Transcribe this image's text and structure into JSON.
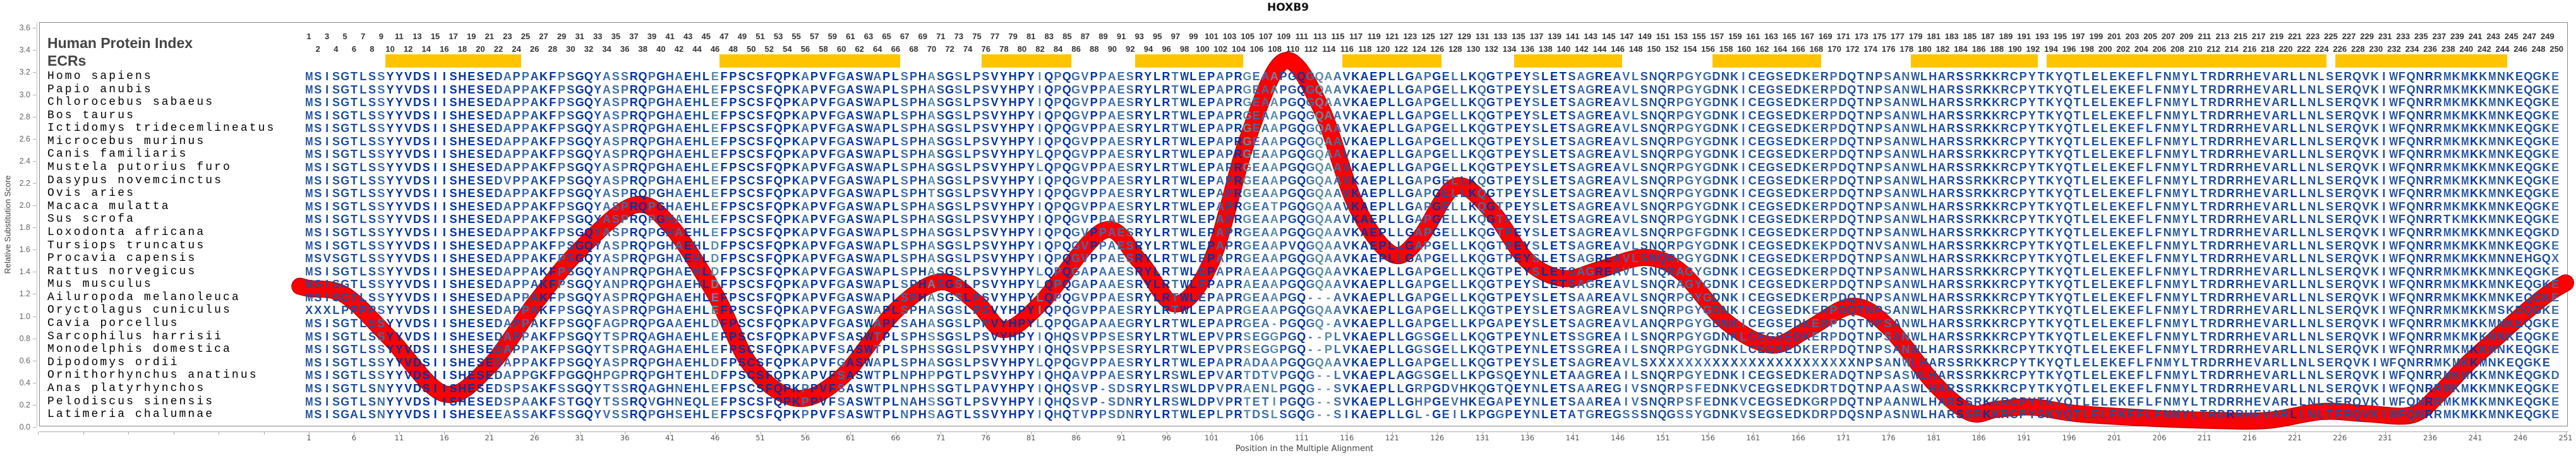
{
  "chart_data": {
    "type": "line",
    "title": "HOXB9",
    "xlabel": "Position in the Multiple Alignment",
    "ylabel": "Relative Substitution Score",
    "ylim": [
      0,
      3.6
    ],
    "xlim": [
      1,
      251
    ],
    "y_ticks": [
      "0.0",
      "0.2",
      "0.4",
      "0.6",
      "0.8",
      "1.0",
      "1.2",
      "1.4",
      "1.6",
      "1.8",
      "2.0",
      "2.2",
      "2.4",
      "2.6",
      "2.8",
      "3.0",
      "3.2",
      "3.4",
      "3.6"
    ],
    "x_ticks": [
      1,
      6,
      11,
      16,
      21,
      26,
      31,
      36,
      41,
      46,
      51,
      56,
      61,
      66,
      71,
      76,
      81,
      86,
      91,
      96,
      101,
      106,
      111,
      116,
      121,
      126,
      131,
      136,
      141,
      146,
      151,
      156,
      161,
      166,
      171,
      176,
      181,
      186,
      191,
      196,
      201,
      206,
      211,
      216,
      221,
      226,
      231,
      236,
      241,
      246,
      251
    ],
    "series": [
      {
        "name": "Relative Substitution Score",
        "color": "#ff0000",
        "points": [
          [
            0,
            1.27
          ],
          [
            1,
            1.25
          ],
          [
            5,
            1.19
          ],
          [
            10,
            0.8
          ],
          [
            16,
            0.3
          ],
          [
            21,
            0.55
          ],
          [
            26,
            1.11
          ],
          [
            31,
            1.6
          ],
          [
            37,
            2.0
          ],
          [
            41,
            1.82
          ],
          [
            46,
            1.2
          ],
          [
            50,
            0.55
          ],
          [
            55,
            0.26
          ],
          [
            60,
            0.45
          ],
          [
            66,
            1.05
          ],
          [
            71,
            1.31
          ],
          [
            75,
            1.12
          ],
          [
            78,
            0.88
          ],
          [
            82,
            1.11
          ],
          [
            89,
            1.77
          ],
          [
            93,
            1.5
          ],
          [
            97,
            1.11
          ],
          [
            101,
            1.5
          ],
          [
            105,
            2.6
          ],
          [
            109,
            3.3
          ],
          [
            113,
            2.9
          ],
          [
            117,
            2.0
          ],
          [
            121,
            1.56
          ],
          [
            124,
            1.7
          ],
          [
            128,
            2.17
          ],
          [
            132,
            1.95
          ],
          [
            136,
            1.5
          ],
          [
            140,
            1.34
          ],
          [
            144,
            1.42
          ],
          [
            149,
            1.53
          ],
          [
            153,
            1.4
          ],
          [
            158,
            0.95
          ],
          [
            163,
            0.74
          ],
          [
            167,
            0.88
          ],
          [
            172,
            1.09
          ],
          [
            176,
            0.9
          ],
          [
            181,
            0.4
          ],
          [
            185,
            0.13
          ],
          [
            188,
            0.16
          ],
          [
            192,
            0.18
          ],
          [
            197,
            0.12
          ],
          [
            205,
            0.08
          ],
          [
            212,
            0.06
          ],
          [
            218,
            0.06
          ],
          [
            224,
            0.14
          ],
          [
            229,
            0.12
          ],
          [
            234,
            0.11
          ],
          [
            237,
            0.3
          ],
          [
            240,
            0.56
          ],
          [
            243,
            0.78
          ],
          [
            246,
            1.0
          ],
          [
            249,
            1.2
          ],
          [
            251,
            1.3
          ]
        ]
      }
    ]
  },
  "header": {
    "protein_index_label": "Human Protein Index",
    "ecr_label": "ECRs",
    "position_range": [
      1,
      250
    ],
    "ecr_color": "#ffc400",
    "ecrs": [
      [
        10,
        24
      ],
      [
        47,
        66
      ],
      [
        76,
        85
      ],
      [
        93,
        104
      ],
      [
        116,
        126
      ],
      [
        135,
        146
      ],
      [
        157,
        168
      ],
      [
        179,
        192
      ],
      [
        194,
        224
      ],
      [
        226,
        244
      ]
    ]
  },
  "rows": [
    {
      "species": "Homo sapiens",
      "seq": "MSISGTLSSYYVDSIISHESEDAPPAKFPSGQYASSRQPGHAEHLEFPSCSFQPKAPVFGASWAPLSPHASGSLPSVYHPYIQPQGVPPAESRYLRTWLEPAPRGEAAPGQGQAAVKAEPLLGAPGELLKQGTPEYSLETSAGREAVLSNQRPGYGDNKICEGSEDKERPDQTNPSANWLHARSSRKKRCPYTKYQTLELEKEFLFNMYLTRDRRHEVARLLNLSERQVKIWFQNRRMKMKKMNKEQGKE"
    },
    {
      "species": "Papio anubis",
      "seq": "MSISGTLSSYYVDSIISHESEDAPPAKFPSGQYASPRQPGHAEHLEFPSCSFQPKAPVFGASWAPLSPHASGSLPSVYHPYIQPQGVPPAESRYLRTWLEPAPRGEAAPGQGQAAVKAEPLLGAPGELLKQGTPEYSLETSAGREAVLSNQRPGYGDNKICEGSEDKERPDQTNPSANWLHARSSRKKRCPYTKYQTLELEKEFLFNMYLTRDRRHEVARLLNLSERQVKIWFQNRRMKMKKMNKEQGKE"
    },
    {
      "species": "Chlorocebus sabaeus",
      "seq": "MSISGTLSSYYVDSIISHESEDAPPAKFPSGQYASPRQPGHAEHLEFPSCSFQPKAPVFGASWAPLSPHASGSLPSVYHPYIQPQGVPPAESRYLRTWLEPAPRGEAAPGQGQAAVKAEPLLGAPGELLKQGTPEYSLETSAGREAVLSNQRPGYGDNKICEGSEDKERPDQTNPSANWLHARSSRKKRCPYTKYQTLELEKEFLFNMYLTRDRRHEVARLLNLSERQVKIWFQNRRMKMKKMNKEQGKE"
    },
    {
      "species": "Bos taurus",
      "seq": "MSISGTLSSYYVDSIISHESEDAPPAKFPSGQYASPRQPGHAEHLEFPSCSFQPKAPVFGASWAPLSPHASGSLPSVYHPYIQPQGVPPAESRYLRTWLEPAPRGEAAPGQGQAAVKAEPLLGAPGELLKQGTPEYSLETSAGREAVLSNQRPGYGDNKICEGSEDKERPDQTNPSANWLHARSSRKKRCPYTKYQTLELEKEFLFNMYLTRDRRHEVARLLNLSERQVKIWFQNRRMKMKKMNKEQGKE"
    },
    {
      "species": "Ictidomys tridecemlineatus",
      "seq": "MSISGTLSSYYVDSIISHESEDAPPAKFPSGQYASPRQPGHAEHLEFPSCSFQPKAPVFGASWAPLSPHASGSLPSVYHPYIQPQGVPPAESRYLRTWLEPAPRGEAAPGQGQAAVKAEPLLGAPGELLKQGTPEYSLETSAGREAVLSNQRPGYGDNKICEGSEDKERPDQTNPSANWLHARSSRKKRCPYTKYQTLELEKEFLFNMYLTRDRRHEVARLLNLSERQVKIWFQNRRMKMKKMNKEQGKE"
    },
    {
      "species": "Microcebus murinus",
      "seq": "MSISGTLSSYYVDSIISHESEDAPPAKFPSGQYASPRQPGHAEHLEFPSCSFQPKAPVFGASWAPLSPHASGSLPSVYHPYIQPQGVPPAESRYLRTWLEPAPRGEAAPGQGQAAVKAEPLLGAPGELLKQGTPEYSLETSAGREAVLSNQRPGYGDNKICEGSEDKERPDQTNPSANWLHARSSRKKRCPYTKYQTLELEKEFLFNMYLTRDRRHEVARLLNLSERQVKIWFQNRRMKMKKMNKEQGKE"
    },
    {
      "species": "Canis familiaris",
      "seq": "MSISGTLSSYYVDSIISHESEDAPPAKFPSGQYASPRQPGHAEHLEFPSCSFQPKAPVFGASWAPLSPHASGSLPSVYHPYLQPQGVPPAESRYLRTWLEPAPRGEAAPGQGQAAVKAEPLLGAPGELLKQGTPEYSLETSAGREAVLSNQRPGYGDNKICEGSEDKERPDQTNPSANWLHARSSRKKRCPYTKYQTLELEKEFLFNMYLTRDRRHEVARLLNLSERQVKIWFQNRRMKMKKMNKEQGKE"
    },
    {
      "species": "Mustela putorius furo",
      "seq": "MSISGTLSSYYVDSIISHESEDAPPAKFPSGQYASPRQPGHAEHLEFPSCSFQPKAPVFGASWAPLSPHASGSLPSVYHPYLQPQGVPPAESRYLRTWLEPAPRGEAAPGQGQAAVKAEPLLGAPGELLKQGTPEYSLETSAGREAVLSNQRPGYGDNKICEGSEDKERPDQTNPSANWLHARSSRKKRCPYTKYQTLELEKEFLFNMYLTRDRRHEVARLLNLSERQVKIWFQNRRMKMKKMNKEQGKE"
    },
    {
      "species": "Dasypus novemcinctus",
      "seq": "MSISGTLSSYYVDSIISHESEDVPPAKFPSGQYASPRQPGHAEHLEFPSCSFQPKAPVFGASWAPLSPHASGSLPSVYHPYIQPQGVPPAESRYLRTWLEPAPRGEAAPGQGQAAVKAEPLLGAPGELLKQGTPEYSLETSAGREAVLSNQRPGYGDNKICEGSEDKERPDQTNPSANWLHARSSRKKRCPYTKYQTLELEKEFLFNMYLTRDRRHEVARLLNLSERQVKIWFQNRRMKMKKMNKEQGKE"
    },
    {
      "species": "Ovis aries",
      "seq": "MSISGTLSSYYVDSIISHESEDAPPAKFPSGQYASPRQPGHAEHLEFPSCSFQPKAPVFGASWAPLSPHTSGSLPSVYHPYIQPQGVPPAESRYLRTWLEPAPRGEAAPGQGQAAVKAEPLLGAPGELLKQGTPEYSLETSAGREAVLSNQRPGYGDNKICEGSEDKERPDQTNPSANWLHARSSRKKRCPYTKYQTLELEKEFLFNMYLTRDRRHEVARLLNLSERQVKIWFQNRRMKMKKMNKEQGKE"
    },
    {
      "species": "Macaca mulatta",
      "seq": "MSISGTLSSYYVDSIISHESEDAPPAKFPSGQYASPRQPGHAEHLEFPSCSFQPKAPVFGASWAPLSPHASGSLPSVYHPYIQPQGVPPAESRYLRTWLEPAPRGEATPGQGQAAVKAEPLLGAPGELLKQGTPEYSLETSAGREAVLSNQRPGYGDNKICEGSEDKERPDQTNPSANWLHARSSRKKRCPYTKYQTLELEKEFLFNMYLTRDRRHEVARLLNLSERQVKIWFQNRRMKMKKMNKEQGKE"
    },
    {
      "species": "Sus scrofa",
      "seq": "MSISGTLSSYYVDSIISHESEDAPPAKFPSGQYASPRQPGHAEHLEFPSCSFQPKAPVFGASWAPLSPHASGSLPSVYHPYIQPQGVPPAESRYLRTWLEPAPRGEAAPGQGQAAVKAEPLLGAPGELLKQGTPEYSLETSAGREAVLSNQRPGYGDNKICEGSEDKERPDQTNPSANWLHARSSRKKRCPYTKYQTLELEKEFLFNMYLTRDRRHEVARLLNLSERQVKIWFQNRRTKMKKMNKEQGKE"
    },
    {
      "species": "Loxodonta africana",
      "seq": "MSISGTLSSYYVDSIISHESEDAPPAKFPSGQYASPRQPGHAEHLEFPSCSFQPKAPVFGASWAPLSPHASGSLPSVYHPYIQPQGVPPAESRYLRTWLEPAPRGEAAPGQGQAAVKAEPLLGAPGELLKQGTPEYSLETSAGREAVLSNQRPGFGDNKICEGSEDKERPDQTNPSANWLHARSSRKKRCPYTKYQTLELEKEFLFNMYLTRDRRHEVARLLNLSERQVKIWFQNRRMKMKKMNKEQGKD"
    },
    {
      "species": "Tursiops truncatus",
      "seq": "MSISGTLSSYYVDSIISHESEDAPPAKFPSGQYASPRQPGHAEHLDFPSCSFQPKAPVFGASWAPLSPHASGSLPSVYHPYIQPQGVPPAESRYLRTWLEPAPRGEAAPVQGQAAVKAEPLLGAPGELLKQGTPEYSLETSAGREAVLSNQRPGYGDNKICEGSEDKEKPDQTNVSANWLHARSSRKKRCPYTKYQTLELEKEFLFNMYLTRDRRHEVARLLNLSERQVKIWFQNRRMKMKKMNKEQGKE"
    },
    {
      "species": "Procavia capensis",
      "seq": "MSVSGTLSSYYVDSIISHESEDAPPAKFPSGQYASPRQPGHAEHLDFPSCSFQPKAPVFGASWAPLSPHASGSLPSVYHPYIQPQGVPPAESRYLRTWLEPAPRGEAAPGQGQAAVKAEPLLGAPGELLKQGTPEYSLETSAGREAVLSNQRPGYGDNKICEGSEDKERPDQTNPSANWLHARSSRKKRCPYTKYQTLELEKEFLFNMYLTRDRRHEVARLLNLSERQVKIWFQNRRMKMKKMNNEHGQX"
    },
    {
      "species": "Rattus norvegicus",
      "seq": "MSISGTLSSYYVDSIISHESEDAPPAKFPSGQYANPRQPGHAEHLDFPSCSFQPKAPVFGASWAPLSPHASGSLPSVYHPYLQPQGAPAAESRYLRTWLEPAPRAEAAPGQGQAAVKAEPLLGAPGELLKQGTPEYSLETSAGREAVLSNQRAGYGDNKICEGSEDKERPDQTNPSANWLHARSSRKKRCPYTKYQTLELEKEFLFNMYLTRDRRHEVARLLNLSERQVKIWFQNRRMKMKKMNKEQGKE"
    },
    {
      "species": "Mus musculus",
      "seq": "MSISGTLSSYYVDSIISHESEDAPPAKFPSGQYANPRQPGHAEHLDFPSCSFQPKAPVFGASWAPLSPHASGSLPSVYHPYLQPQGAPAAESRYLRTWLEPAPRAEAAPGQGQAAVKAEPLLGAPGELLKQGTPEYSLETSAGREAVLSNQRAGYGDNKICEGSEDKERPDQTNPSANWLHARSSRKKRCPYTKYQTLELEKEFLFNMYLTRDRRHEVARLLNLSERQVKIWFQNRRMKMKKMNKEQGKE"
    },
    {
      "species": "Ailuropoda melanoleuca",
      "seq": "MSISGTLSSYYVDSIISHESEDAPPAKFPSGQYASPRQPGHAEHLEFPSCSFQPKAPVFGASWAPLSPHASGSLPSVYHPYLQPQGVPPAESRYLRTWLEPAPRGEAAPGQ---AVKAEPLLGAPGELLKQGTPEYSLETSAAREAVLSNQRPGYGDNKICEGSEDKERPDQTNPSANWLHARSSRKKRCPYTKYQTLELEKEFLFNMYLTRDRRHEVARLLNLSERQVKIWFQNRRMKMKKMNKEQGKE"
    },
    {
      "species": "Oryctolagus cuniculus",
      "seq": "XXXLPPPPSYYVDSIISHESEDAPPAKFPSGQYASPRQPGHAEHLEFPSCSFQPKAPVFGASWAPLSPHASGSLPSVYHPYIQPQGVPPAESRYLRTWLEPAPRGEAAPGQGQAAVKAEPLLGAPGELLKQGTPEYSLETSAGREAVLSNQRPGYGDNKICEGSEDKERPDQTNPSANWLHARSSRKKRCPYTKYQTLELEKEFLFNMYLTRDRRHEVARLLNLSERQVKIWFQNRRMKMKKMSKDQGKE"
    },
    {
      "species": "Cavia porcellus",
      "seq": "MSISGTLSSYYVDSIISHESEDAPPAKFPSGQFAGPRQPGAAEHLDFPSCSFQPKAPVFGASWAPLSAHASGSLPPVYHPYLQPQGAPAAEGRYLRTWLEPAPRGEA-PGQGQ-AVKAEPLLGAPGELLKPGAPEYSLETSAGREAVLANQRPGYGDNKICEGSEDKERPDQTNPSANWLHARSSRKKRCPYTKYQTLELEKEFLFNMYLTRDRRHEVARLLNLSERQVKIWFQNRRMKMKKMNKEQGKE"
    },
    {
      "species": "Sarcophilus harrisii",
      "seq": "MSISGTLSSYYVDSIISHESEDAPPAKFPSGQYTSPRQAGHAEHLEFPSCSFQPKAPVFSASWTPLSPHSSGSLPSVYHPYIQHQSVPPSESRYLRTWLEPVPRSEGGPGQ--PLVKAEPLLGGSGELLKQGTPEYNLETSSGREAILSNQRPGYGDNKLCEGSEDKERPDQTNPSANWLHARSSRKKRCPYTKYQTLELEKEFLFNMYLTRDRRHEVARLLNLSERQVKIWFQNRRMKMKKMNKEQGKE"
    },
    {
      "species": "Monodelphis domestica",
      "seq": "MSISGTLSSYYVDSIISHESEDAPPAKFPSGQYTSPRQAGHAEHLEFPSCSFQPKAPVFSASWTPLSPHSSGSLPSVYHPYIQHQSVPPSESRYLRTWLEPVPRSEGGPGQ--PLVKAEPLLGGSGELLKQGTPEYNLETSSGREAILSNQRPGYGDNKLCEGSEDKERPDQTNPSANWLHARSSRKKRCPYTKYQTLELEKEFLFNMYLTRDRRHEVARLLNLSERQVKIWFQNRRMKMKKMNKEQGKE"
    },
    {
      "species": "Dipodomys ordii",
      "seq": "MSISGTLSSYYVDSIISHESEDAPPAKFPSGQYASPRQPGHAEHLDFPSCSFQPKAPVFGASWAPLSPHASGSLPSVYHPYLQPQGVPPAESRYLRTWLEPAPRADAAPGQGQAAVKAEPLLGAPGELLKQGTPEYSLETSAGREAVLSXXXXXXXXXXXXXXXXXXXXXXXNPSANWLHARSSRKKRCPYTKYQTLELEKEFLFNMYLTRDRRHEVARLLNLSERQVKIWFQNRRMKMKKMNKEQGKE"
    },
    {
      "species": "Ornithorhynchus anatinus",
      "seq": "MSISGTLSSYYVDSIISHESEDAPPGKFPGGQHPGPRQPGHTEHLDFPSCSFQPKAPVFSASWTPLNPHPPGTLPSVYHPYIQHQAVPPAESRYLRSWLEPVARTDTVPGQG--LVKAEPLAGGSGELLKPGSQEYNLETAAGREAILSNQRPGYEDNKICEGSEDKERADQTNPSASWLHARSSRKKRCPYTKYQTLELEKEFLFNMYLTRDRRHEVARLLNLSERQVKIWFQNRRMKMKKMNKEQGKD"
    },
    {
      "species": "Anas platyrhynchos",
      "seq": "MSISGTLSNYYVDSIISHESEDSPSAKFSSGQYTSSRQAGHNEHLEFPSCSFQPKPPVFSASWTPLNPHSSGTLPAVYHPYIQHQSVP-SDSRYLRSWLDPVPRAENLPGQG--SVKAEPLLGRPGDVHKQGTQEYNLETSAAREGIVSNQRPSFEDNKVCEGSEDKDRTDQTNPAASWLHARSSRKKRCPYTKYQTLELEKEFLFNMYLTRDRRHEVARLLNLSERQVKIWFQNRRMKMKKMNKEQGKE"
    },
    {
      "species": "Pelodiscus sinensis",
      "seq": "MSISGTLSNYYVDSIISHESEDSPAAKFSTGQYTSSRQVGHNEQLEFPSCSFQPKPPVFSASWTPLNAHSSGTLPSVYHPYIQHQSVP-SDNRYLRSWLDPVPRTETIPGQG--SVKAEPLLGHPGEVHKEGAPEYNLETSAAREAIVSNQRPSFEDNKVCEGSEDKGRPDQTNPAANWLHARSSRKKRCPYTKYQTLELEKEFLFNMYLTRDRRHEVARLLNLSERQVKIWFQNRRMKMKKMNKEQGKE"
    },
    {
      "species": "Latimeria chalumnae",
      "seq": "MSISGALSNYYVDSIISHESEEASSAKFSSGQYVSSRQPGHSEHLEFPSCSFQPKPPVFSASWTPLNPHSAGTLSSVYHPYIQHQTVPPSDNRYLRTWLEPLPRTDSLSGQG--SIKAEPLLGL-GEILKPGGPEYNLETATGREGSSSNQGSSYGDNKVSEGSEDKDRPDQSNPASNWLHARSSRKKRCPYSKYQTLELEKEFLFNMYLTRDRRHEVARLLNLTERQVKIWFQNRRMKMKKMNKEQGKE"
    }
  ],
  "colors": {
    "conserved": "#0033a0",
    "high": "#1d4f9e",
    "medium": "#3d6da8",
    "low": "#5a8ca8",
    "variable": "#8cc4a0"
  }
}
